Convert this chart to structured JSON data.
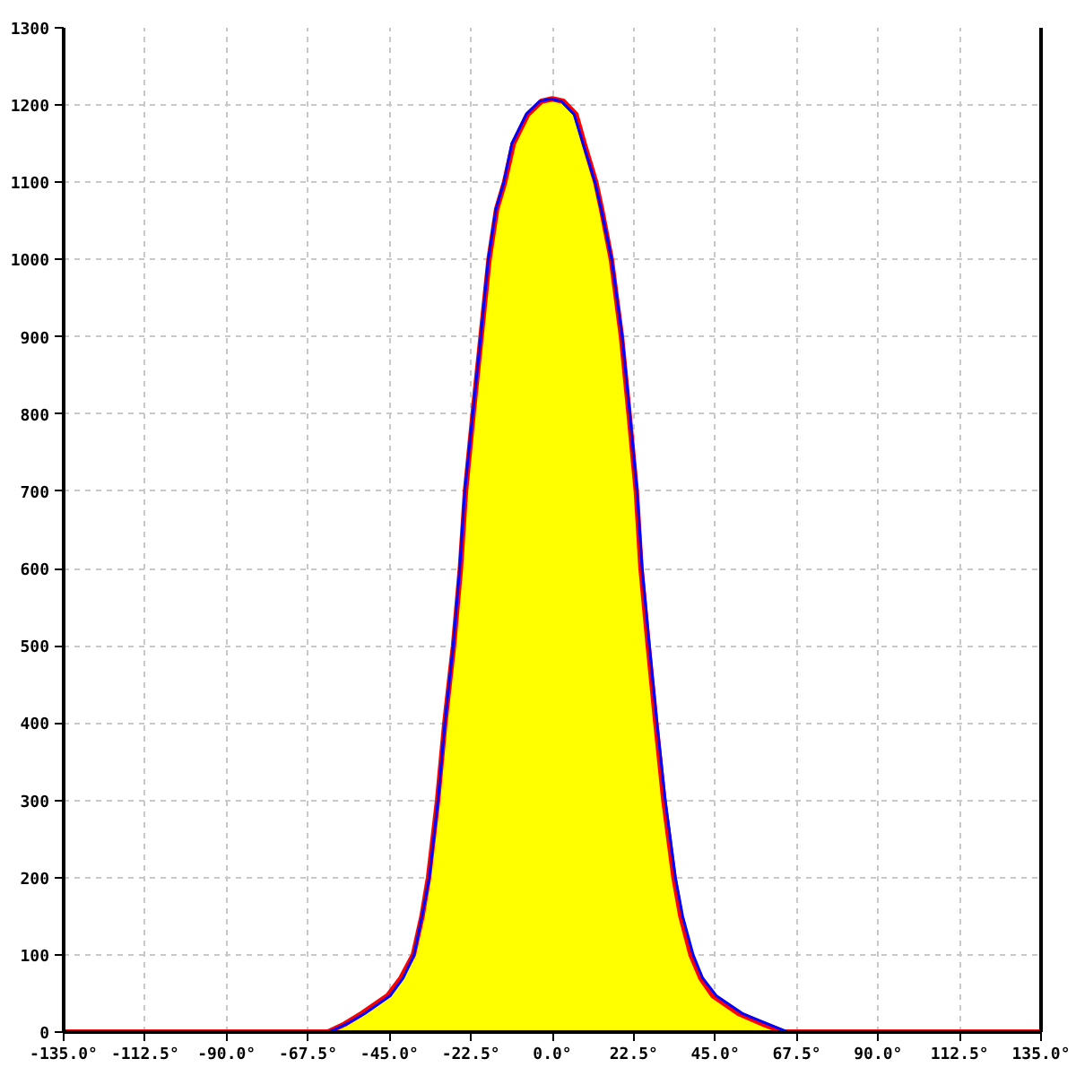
{
  "chart_data": {
    "type": "area",
    "xlim": [
      -135,
      135
    ],
    "xticks": [
      {
        "value": -135,
        "label": "-135.0°"
      },
      {
        "value": -112.5,
        "label": "-112.5°"
      },
      {
        "value": -90,
        "label": "-90.0°"
      },
      {
        "value": -67.5,
        "label": "-67.5°"
      },
      {
        "value": -45,
        "label": "-45.0°"
      },
      {
        "value": -22.5,
        "label": "-22.5°"
      },
      {
        "value": 0,
        "label": "0.0°"
      },
      {
        "value": 22.5,
        "label": "22.5°"
      },
      {
        "value": 45,
        "label": "45.0°"
      },
      {
        "value": 67.5,
        "label": "67.5°"
      },
      {
        "value": 90,
        "label": "90.0°"
      },
      {
        "value": 112.5,
        "label": "112.5°"
      },
      {
        "value": 135,
        "label": "135.0°"
      }
    ],
    "ylim": [
      0,
      1300
    ],
    "yticks": [
      0,
      100,
      200,
      300,
      400,
      500,
      600,
      700,
      800,
      900,
      1000,
      1100,
      1200,
      1300
    ],
    "grid": true,
    "series": [
      {
        "color": "#ffff00",
        "x": [
          -62,
          -57.5,
          -52.6,
          -45.5,
          -41.8,
          -38.4,
          -36,
          -34.2,
          -31.7,
          -29.7,
          -27.3,
          -25.4,
          -24,
          -21.9,
          -19.7,
          -17.5,
          -15.4,
          -13.2,
          -10.8,
          -6.8,
          -3,
          0,
          3,
          6.5,
          8.8,
          12,
          13.6,
          16.3,
          19.1,
          21.2,
          23.2,
          24.5,
          26.5,
          28.6,
          30.8,
          33.6,
          35.5,
          38.3,
          41,
          44.4,
          51.5,
          58.5,
          64
        ],
        "values": [
          0,
          10,
          24,
          47,
          70,
          100,
          150,
          200,
          300,
          400,
          500,
          600,
          700,
          800,
          900,
          1000,
          1065,
          1100,
          1150,
          1188,
          1205,
          1208,
          1205,
          1188,
          1150,
          1100,
          1065,
          1000,
          900,
          800,
          700,
          600,
          500,
          400,
          300,
          200,
          150,
          100,
          70,
          47,
          24,
          10,
          0
        ]
      },
      {
        "type": "line",
        "color": "#ff0000",
        "x": [
          -135,
          -62,
          -57.5,
          -52.6,
          -45.5,
          -41.8,
          -38.4,
          -36,
          -34.2,
          -31.7,
          -29.7,
          -27.3,
          -25.4,
          -24,
          -21.9,
          -19.7,
          -17.5,
          -15.4,
          -13.2,
          -10.8,
          -6.8,
          -3,
          0,
          3,
          6.5,
          8.8,
          12,
          13.6,
          16.3,
          19.1,
          21.2,
          23.2,
          24.5,
          26.5,
          28.6,
          30.8,
          33.6,
          35.5,
          38.3,
          41,
          44.4,
          51.5,
          58.5,
          64,
          135
        ],
        "values": [
          0,
          0,
          10,
          24,
          47,
          70,
          100,
          150,
          200,
          300,
          400,
          500,
          600,
          700,
          800,
          900,
          1000,
          1065,
          1100,
          1150,
          1188,
          1205,
          1208,
          1205,
          1188,
          1150,
          1100,
          1065,
          1000,
          900,
          800,
          700,
          600,
          500,
          400,
          300,
          200,
          150,
          100,
          70,
          47,
          24,
          10,
          0,
          0
        ]
      },
      {
        "type": "line",
        "color": "#0000ff",
        "x": [
          -61.8,
          -57,
          -51.8,
          -44.8,
          -41.2,
          -38.2,
          -36,
          -34,
          -31.6,
          -29.7,
          -27.4,
          -25.6,
          -24.2,
          -22,
          -19.8,
          -17.7,
          -15.6,
          -13.4,
          -11.2,
          -7.2,
          -3.5,
          -0.5,
          2.5,
          6,
          8.5,
          11.8,
          13.5,
          16.4,
          19.3,
          21.4,
          23.4,
          24.8,
          26.8,
          28.9,
          31.2,
          34,
          36,
          38.9,
          41.5,
          45.3,
          52.5,
          59.8,
          65
        ],
        "values": [
          0,
          10,
          24,
          47,
          70,
          100,
          150,
          200,
          300,
          400,
          500,
          600,
          700,
          800,
          900,
          1000,
          1065,
          1100,
          1150,
          1188,
          1205,
          1208,
          1205,
          1188,
          1150,
          1100,
          1065,
          1000,
          900,
          800,
          700,
          600,
          500,
          400,
          300,
          200,
          150,
          100,
          70,
          47,
          24,
          10,
          0
        ]
      }
    ]
  }
}
